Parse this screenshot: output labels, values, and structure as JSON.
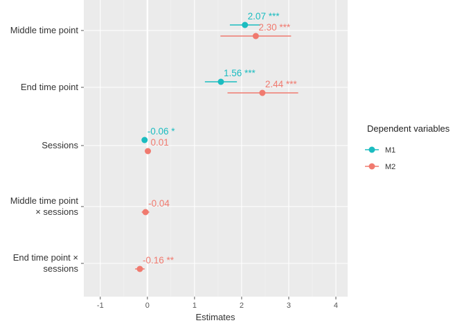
{
  "chart_data": {
    "type": "forest",
    "xlabel": "Estimates",
    "xlim": [
      -1.35,
      4.25
    ],
    "xticks": [
      -1,
      0,
      1,
      2,
      3,
      4
    ],
    "terms": [
      [
        "Middle time point"
      ],
      [
        "End time point"
      ],
      [
        "Sessions"
      ],
      [
        "Middle time point",
        "× sessions"
      ],
      [
        "End time point ×",
        "sessions"
      ]
    ],
    "legend": {
      "title": "Dependent variables",
      "items": [
        {
          "name": "M1",
          "color": "#1bbcc0"
        },
        {
          "name": "M2",
          "color": "#f07a6f"
        }
      ]
    },
    "series": [
      {
        "name": "M1",
        "color": "#1bbcc0",
        "points": [
          {
            "term": 0,
            "estimate": 2.07,
            "ci": [
              1.75,
              2.4
            ],
            "label": "2.07",
            "sig": "***"
          },
          {
            "term": 1,
            "estimate": 1.56,
            "ci": [
              1.22,
              1.9
            ],
            "label": "1.56",
            "sig": "***"
          },
          {
            "term": 2,
            "estimate": -0.06,
            "ci": [
              -0.1,
              -0.02
            ],
            "label": "-0.06",
            "sig": "*"
          }
        ]
      },
      {
        "name": "M2",
        "color": "#f07a6f",
        "points": [
          {
            "term": 0,
            "estimate": 2.3,
            "ci": [
              1.55,
              3.05
            ],
            "label": "2.30",
            "sig": "***"
          },
          {
            "term": 1,
            "estimate": 2.44,
            "ci": [
              1.7,
              3.2
            ],
            "label": "2.44",
            "sig": "***"
          },
          {
            "term": 2,
            "estimate": 0.01,
            "ci": [
              -0.03,
              0.05
            ],
            "label": "0.01",
            "sig": ""
          },
          {
            "term": 3,
            "estimate": -0.04,
            "ci": [
              -0.12,
              0.04
            ],
            "label": "-0.04",
            "sig": ""
          },
          {
            "term": 4,
            "estimate": -0.16,
            "ci": [
              -0.26,
              -0.06
            ],
            "label": "-0.16",
            "sig": "**"
          }
        ]
      }
    ]
  }
}
